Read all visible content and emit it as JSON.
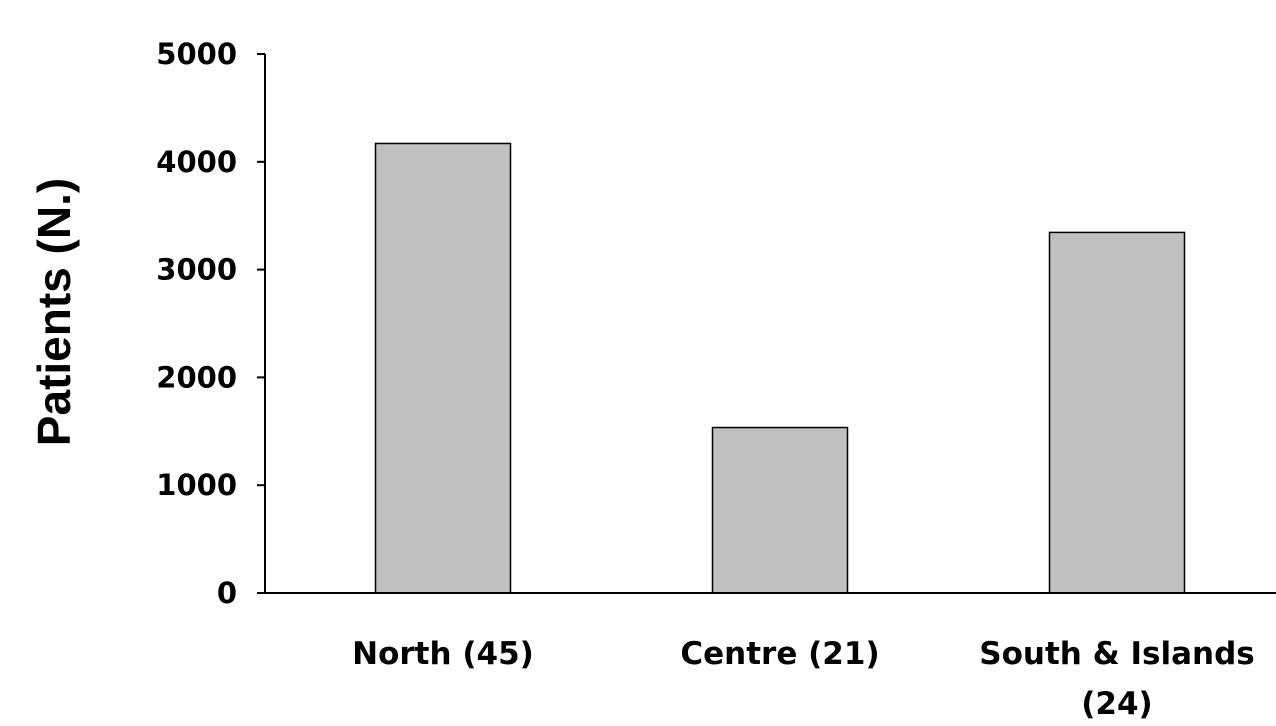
{
  "chart_data": {
    "type": "bar",
    "categories": [
      [
        "North (45)"
      ],
      [
        "Centre (21)"
      ],
      [
        "South & Islands",
        "(24)"
      ]
    ],
    "values": [
      4170,
      1535,
      3345
    ],
    "title": "",
    "xlabel": "",
    "ylabel": "Patients (N.)",
    "ylim": [
      0,
      5000
    ],
    "yticks": [
      0,
      1000,
      2000,
      3000,
      4000,
      5000
    ],
    "grid": false,
    "legend": "none",
    "bar_color": "#c0c0c0",
    "bar_edge_color": "#000000",
    "axis_color": "#000000"
  }
}
